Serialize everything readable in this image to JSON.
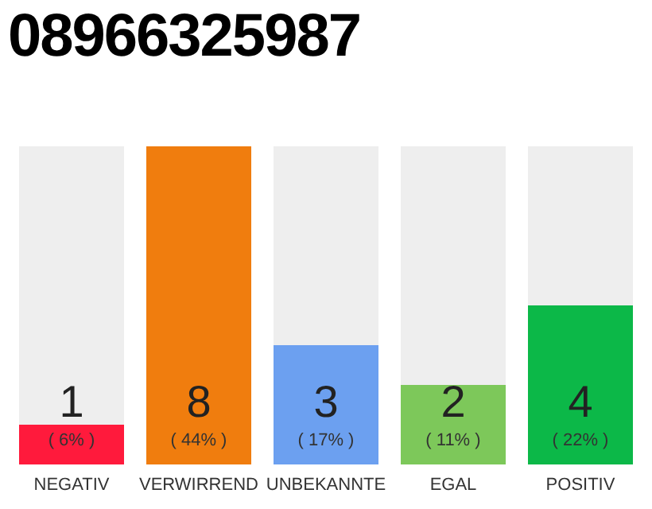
{
  "chart_data": {
    "type": "bar",
    "title": "08966325987",
    "categories": [
      "NEGATIV",
      "VERWIRREND",
      "UNBEKANNTE",
      "EGAL",
      "POSITIV"
    ],
    "values": [
      1,
      8,
      3,
      2,
      4
    ],
    "colors": [
      "#ff1a3c",
      "#f07d0e",
      "#6ca0f0",
      "#7dc85a",
      "#0cb848"
    ],
    "data_labels": true,
    "annotations": [
      "( 6% )",
      "( 44% )",
      "( 17% )",
      "( 11% )",
      "( 22% )"
    ],
    "tick_labels": "x",
    "grid": false,
    "legend": false
  }
}
